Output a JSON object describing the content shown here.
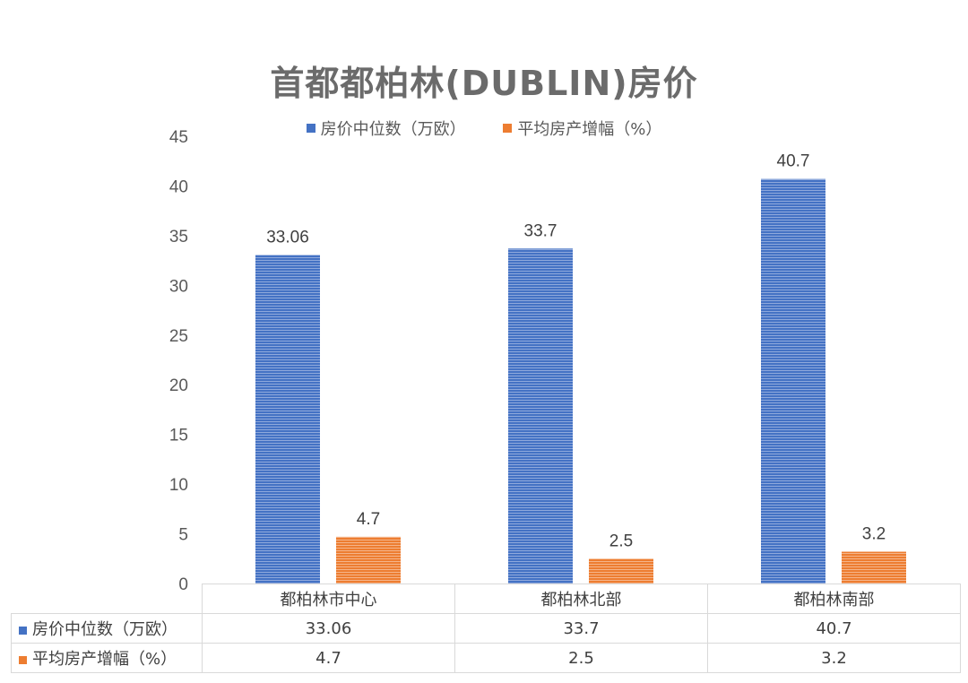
{
  "chart_data": {
    "type": "bar",
    "title": "首都都柏林(DUBLIN)房价",
    "categories": [
      "都柏林市中心",
      "都柏林北部",
      "都柏林南部"
    ],
    "series": [
      {
        "name": "房价中位数（万欧）",
        "values": [
          33.06,
          33.7,
          40.7
        ],
        "value_labels": [
          "33.06",
          "33.7",
          "40.7"
        ],
        "color": "#4472c4"
      },
      {
        "name": "平均房产增幅（%）",
        "values": [
          4.7,
          2.5,
          3.2
        ],
        "value_labels": [
          "4.7",
          "2.5",
          "3.2"
        ],
        "color": "#ed7d31"
      }
    ],
    "ylim": [
      0,
      45
    ],
    "yticks": [
      0,
      5,
      10,
      15,
      20,
      25,
      30,
      35,
      40,
      45
    ],
    "legend_position": "top",
    "grid": false,
    "data_table": true
  }
}
